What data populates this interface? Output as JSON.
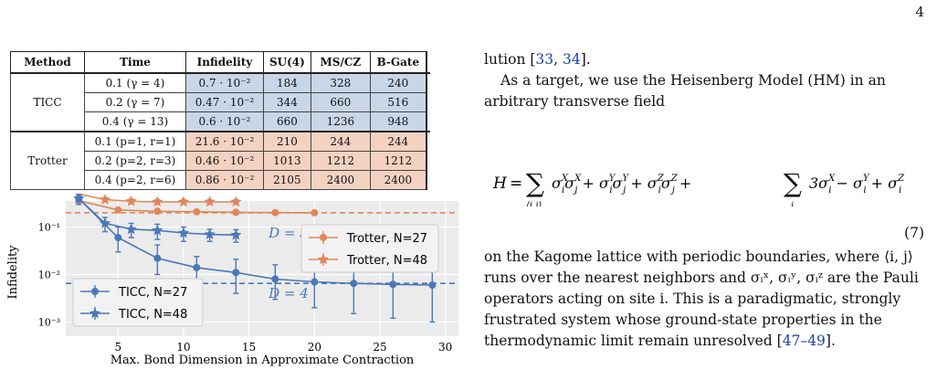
{
  "page_number": "4",
  "table": {
    "headers": [
      "Method",
      "Time",
      "Infidelity",
      "SU(4)",
      "MS/CZ",
      "B-Gate"
    ],
    "groups": [
      {
        "method": "TICC",
        "rows": [
          {
            "time": "0.1 (γ = 4)",
            "infidelity": "0.7 · 10⁻²",
            "su4": "184",
            "mscz": "328",
            "bgate": "240"
          },
          {
            "time": "0.2 (γ = 7)",
            "infidelity": "0.47 · 10⁻²",
            "su4": "344",
            "mscz": "660",
            "bgate": "516"
          },
          {
            "time": "0.4 (γ = 13)",
            "infidelity": "0.6 · 10⁻²",
            "su4": "660",
            "mscz": "1236",
            "bgate": "948"
          }
        ]
      },
      {
        "method": "Trotter",
        "rows": [
          {
            "time": "0.1 (p=1, r=1)",
            "infidelity": "21.6 · 10⁻²",
            "su4": "210",
            "mscz": "244",
            "bgate": "244"
          },
          {
            "time": "0.2 (p=2, r=3)",
            "infidelity": "0.46 · 10⁻²",
            "su4": "1013",
            "mscz": "1212",
            "bgate": "1212"
          },
          {
            "time": "0.4 (p=2, r=6)",
            "infidelity": "0.86 · 10⁻²",
            "su4": "2105",
            "mscz": "2400",
            "bgate": "2400"
          }
        ]
      }
    ]
  },
  "chart_data": {
    "type": "line",
    "xlabel": "Max. Bond Dimension in Approximate Contraction",
    "ylabel": "Infidelity",
    "xlim": [
      1,
      31
    ],
    "ylim_log10": [
      -3.3,
      -0.45
    ],
    "y_log": true,
    "xticks": [
      5,
      10,
      15,
      20,
      25,
      30
    ],
    "yticks": [
      {
        "value": 0.1,
        "label": "10⁻¹"
      },
      {
        "value": 0.01,
        "label": "10⁻²"
      },
      {
        "value": 0.001,
        "label": "10⁻³"
      }
    ],
    "annotations": [
      {
        "text": "D = 3",
        "x": 16.5,
        "y": 0.06
      },
      {
        "text": "D = 4",
        "x": 16.5,
        "y": 0.0032
      }
    ],
    "reference_lines": [
      {
        "series": "Trotter",
        "y": 0.2
      },
      {
        "series": "TICC",
        "y": 0.0065
      }
    ],
    "colors": {
      "ticc": "#4a78b8",
      "trotter": "#e0875a"
    },
    "series": [
      {
        "name": "Trotter, N=27",
        "color": "#e0875a",
        "marker": "circle",
        "x": [
          2,
          5,
          8,
          11,
          14,
          17,
          20
        ],
        "y": [
          0.36,
          0.23,
          0.215,
          0.21,
          0.205,
          0.202,
          0.2
        ],
        "err": [
          0.02,
          0.02,
          0.02,
          0.02,
          0.015,
          0.015,
          0.015
        ]
      },
      {
        "name": "Trotter, N=48",
        "color": "#e0875a",
        "marker": "star",
        "x": [
          2,
          4,
          6,
          8,
          10,
          12,
          14
        ],
        "y": [
          0.5,
          0.38,
          0.35,
          0.34,
          0.34,
          0.34,
          0.34
        ],
        "err": [
          0.04,
          0.04,
          0.04,
          0.04,
          0.04,
          0.04,
          0.04
        ]
      },
      {
        "name": "TICC, N=27",
        "color": "#4a78b8",
        "marker": "circle",
        "x": [
          2,
          5,
          8,
          11,
          14,
          17,
          20,
          23,
          26,
          29
        ],
        "y": [
          0.4,
          0.06,
          0.022,
          0.014,
          0.011,
          0.008,
          0.007,
          0.0065,
          0.0062,
          0.006
        ],
        "err_lo": [
          0.1,
          0.03,
          0.012,
          0.008,
          0.007,
          0.005,
          0.005,
          0.005,
          0.005,
          0.005
        ],
        "err_hi": [
          0.1,
          0.04,
          0.02,
          0.01,
          0.01,
          0.008,
          0.008,
          0.008,
          0.008,
          0.008
        ]
      },
      {
        "name": "TICC, N=48",
        "color": "#4a78b8",
        "marker": "star",
        "x": [
          2,
          4,
          6,
          8,
          10,
          12,
          14
        ],
        "y": [
          0.4,
          0.12,
          0.09,
          0.085,
          0.075,
          0.07,
          0.068
        ],
        "err": [
          0.05,
          0.04,
          0.03,
          0.03,
          0.025,
          0.02,
          0.02
        ]
      }
    ]
  },
  "text": {
    "p1_cont": "lution [",
    "p1_cite1": "33",
    "p1_sep": ", ",
    "p1_cite2": "34",
    "p1_end": "].",
    "p2": "As a target, we use the Heisenberg Model (HM) in an arbitrary transverse field",
    "eq_number": "(7)",
    "p3a": "on the Kagome lattice with periodic boundaries, where ⟨i, j⟩ runs over the nearest neighbors and σᵢˣ, σᵢʸ, σᵢᶻ are the Pauli operators acting on site i.   This is a paradigmatic, strongly frustrated system whose ground-state properties in the thermodynamic limit remain unresolved [",
    "p3_cite": "47–49",
    "p3_end": "]."
  }
}
